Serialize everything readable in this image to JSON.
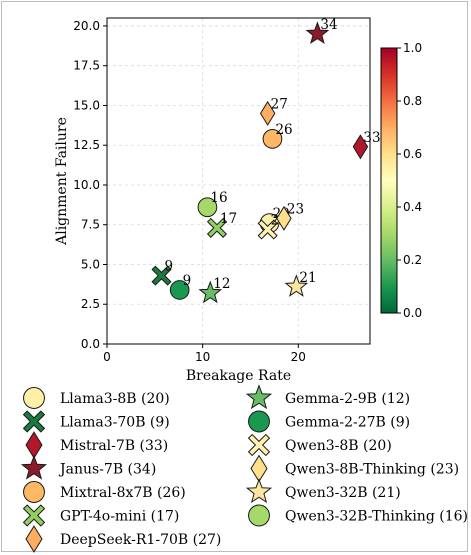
{
  "chart_data": {
    "type": "scatter",
    "xlabel": "Breakage Rate",
    "ylabel": "Alignment Failure",
    "xlim": [
      0,
      27.5
    ],
    "ylim": [
      0,
      20.5
    ],
    "x_ticks": [
      0,
      10,
      20
    ],
    "y_ticks": [
      0.0,
      2.5,
      5.0,
      7.5,
      10.0,
      12.5,
      15.0,
      17.5,
      20.0
    ],
    "grid": true,
    "colorbar": {
      "colormap": "RdYlGn_r",
      "range": [
        0.0,
        1.0
      ],
      "ticks": [
        0.0,
        0.2,
        0.4,
        0.6,
        0.8,
        1.0
      ],
      "stops": [
        "#006837",
        "#1a9850",
        "#66bd63",
        "#a6d96a",
        "#d9ef8b",
        "#ffffbf",
        "#fee08b",
        "#fdae61",
        "#f46d43",
        "#d73027",
        "#a50026"
      ]
    },
    "legend_position": "bottom",
    "points": [
      {
        "name": "Llama3-8B (20)",
        "label": "20",
        "marker": "circle",
        "x": 17.0,
        "y": 7.6,
        "color": "#fff0a8"
      },
      {
        "name": "Llama3-70B (9)",
        "label": "9",
        "marker": "x",
        "x": 5.7,
        "y": 4.3,
        "color": "#1a7a3f"
      },
      {
        "name": "Mistral-7B (33)",
        "label": "33",
        "marker": "diamond",
        "x": 26.5,
        "y": 12.4,
        "color": "#b2182b"
      },
      {
        "name": "Janus-7B (34)",
        "label": "34",
        "marker": "star",
        "x": 22.0,
        "y": 19.5,
        "color": "#8b1a2b"
      },
      {
        "name": "Mixtral-8x7B (26)",
        "label": "26",
        "marker": "circle",
        "x": 17.3,
        "y": 12.9,
        "color": "#fdb863"
      },
      {
        "name": "GPT-4o-mini (17)",
        "label": "17",
        "marker": "x",
        "x": 11.5,
        "y": 7.3,
        "color": "#91cf60"
      },
      {
        "name": "DeepSeek-R1-70B (27)",
        "label": "27",
        "marker": "diamond",
        "x": 16.8,
        "y": 14.5,
        "color": "#fdae61"
      },
      {
        "name": "Gemma-2-9B (12)",
        "label": "12",
        "marker": "star",
        "x": 10.8,
        "y": 3.2,
        "color": "#66bd63"
      },
      {
        "name": "Gemma-2-27B (9)",
        "label": "9",
        "marker": "circle",
        "x": 7.6,
        "y": 3.4,
        "color": "#1a9850"
      },
      {
        "name": "Qwen3-8B (20)",
        "label": "20",
        "marker": "x",
        "x": 16.8,
        "y": 7.2,
        "color": "#fff2b0"
      },
      {
        "name": "Qwen3-8B-Thinking (23)",
        "label": "23",
        "marker": "diamond",
        "x": 18.5,
        "y": 7.9,
        "color": "#fee08b"
      },
      {
        "name": "Qwen3-32B (21)",
        "label": "21",
        "marker": "star",
        "x": 19.8,
        "y": 3.6,
        "color": "#fee6a0"
      },
      {
        "name": "Qwen3-32B-Thinking (16)",
        "label": "16",
        "marker": "circle",
        "x": 10.5,
        "y": 8.6,
        "color": "#a6d96a"
      }
    ]
  }
}
